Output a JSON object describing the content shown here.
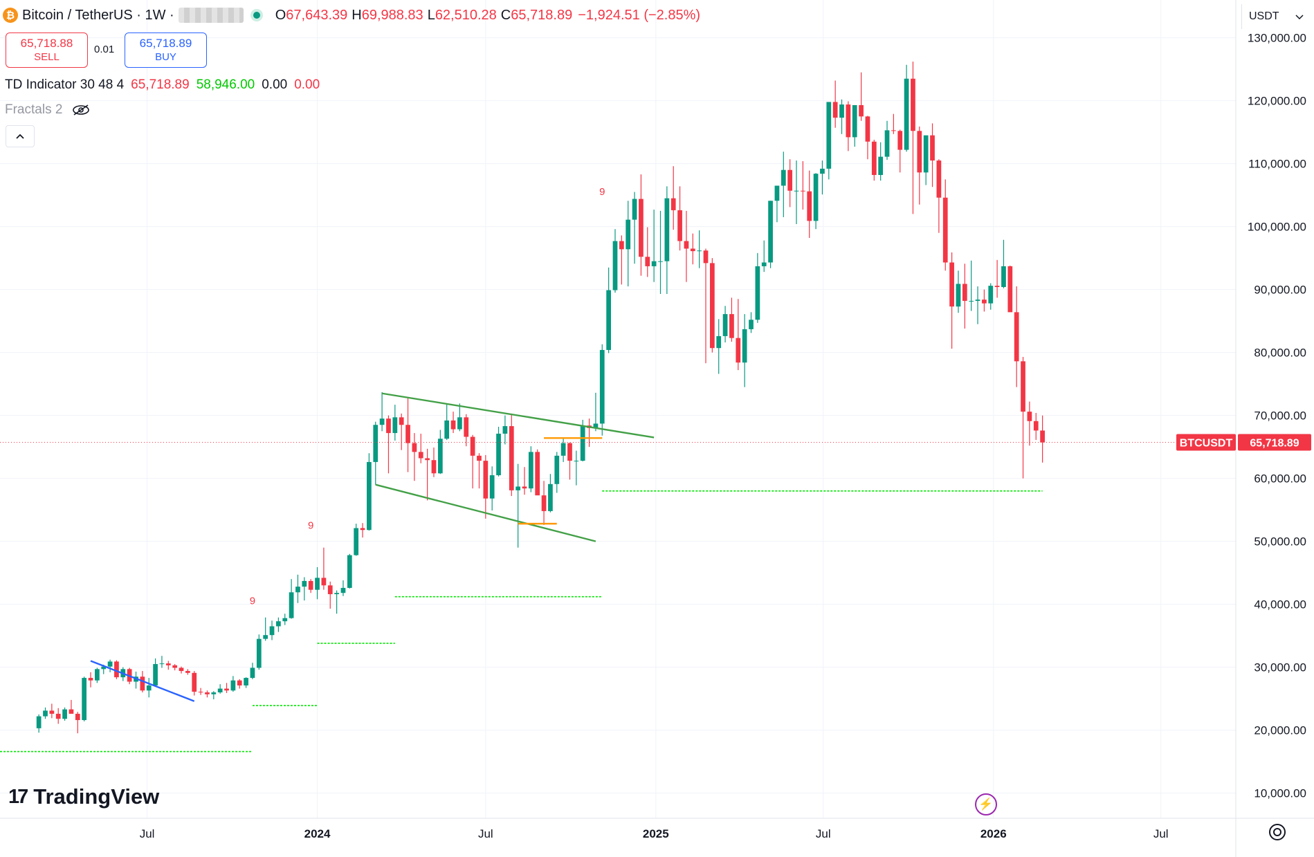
{
  "header": {
    "coin_symbol": "₿",
    "title": "Bitcoin / TetherUS · 1W ·",
    "o_label": "O",
    "o_value": "67,643.39",
    "h_label": "H",
    "h_value": "69,988.83",
    "l_label": "L",
    "l_value": "62,510.28",
    "c_label": "C",
    "c_value": "65,718.89",
    "change": "−1,924.51 (−2.85%)"
  },
  "trade": {
    "sell_price": "65,718.88",
    "sell_label": "SELL",
    "spread": "0.01",
    "buy_price": "65,718.89",
    "buy_label": "BUY"
  },
  "indicators": {
    "td_name": "TD Indicator 30 48 4",
    "td_v1": "65,718.89",
    "td_v2": "58,946.00",
    "td_v3": "0.00",
    "td_v4": "0.00",
    "fractals_name": "Fractals 2"
  },
  "currency": {
    "label": "USDT"
  },
  "price_tag": {
    "symbol": "BTCUSDT",
    "price": "65,718.89",
    "value": 65718.89
  },
  "brand": {
    "logo_text": "TradingView"
  },
  "colors": {
    "up": "#089981",
    "down": "#f23645",
    "trend": "#43a047",
    "blue_line": "#2962ff",
    "orange": "#ff9800",
    "level": "#00e600",
    "grid": "#f0f3fa"
  },
  "chart_data": {
    "type": "candlestick",
    "interval": "1W",
    "y_axis": {
      "ticks": [
        10000,
        20000,
        30000,
        40000,
        50000,
        60000,
        70000,
        80000,
        90000,
        100000,
        110000,
        120000,
        130000
      ],
      "tick_labels": [
        "10,000.00",
        "20,000.00",
        "30,000.00",
        "40,000.00",
        "50,000.00",
        "60,000.00",
        "70,000.00",
        "80,000.00",
        "90,000.00",
        "100,000.00",
        "110,000.00",
        "120,000.00",
        "130,000.00"
      ]
    },
    "x_axis": {
      "tick_labels": [
        "Jul",
        "2024",
        "Jul",
        "2025",
        "Jul",
        "2026",
        "Jul"
      ],
      "tick_dates": [
        "2023-07-01",
        "2024-01-01",
        "2024-07-01",
        "2025-01-01",
        "2025-07-01",
        "2026-01-01",
        "2026-07-01"
      ]
    },
    "x_range": [
      "2023-01-23",
      "2026-09-20"
    ],
    "y_range": [
      6000,
      136000
    ],
    "series_ohlc": [
      [
        "2023-03-06",
        20300,
        22500,
        19600,
        22200
      ],
      [
        "2023-03-13",
        22200,
        23600,
        21800,
        23100
      ],
      [
        "2023-03-20",
        23100,
        24200,
        21900,
        22600
      ],
      [
        "2023-03-27",
        22600,
        23500,
        21000,
        21800
      ],
      [
        "2023-04-03",
        21800,
        23600,
        21500,
        23300
      ],
      [
        "2023-04-10",
        23300,
        24800,
        22700,
        22600
      ],
      [
        "2023-04-17",
        22600,
        22900,
        19500,
        21600
      ],
      [
        "2023-04-24",
        21600,
        28500,
        21400,
        28300
      ],
      [
        "2023-05-01",
        28300,
        29200,
        26800,
        27900
      ],
      [
        "2023-05-08",
        27900,
        29900,
        27500,
        29700
      ],
      [
        "2023-05-15",
        29700,
        30400,
        28900,
        30100
      ],
      [
        "2023-05-22",
        30100,
        31200,
        29200,
        30900
      ],
      [
        "2023-05-29",
        30900,
        31100,
        28100,
        28400
      ],
      [
        "2023-06-05",
        28400,
        30000,
        27800,
        29700
      ],
      [
        "2023-06-12",
        29700,
        29900,
        27300,
        27700
      ],
      [
        "2023-06-19",
        27700,
        29300,
        26600,
        28500
      ],
      [
        "2023-06-26",
        28500,
        29400,
        26000,
        26300
      ],
      [
        "2023-07-03",
        26300,
        28300,
        25200,
        27100
      ],
      [
        "2023-07-10",
        27100,
        31400,
        26900,
        30500
      ],
      [
        "2023-07-17",
        30500,
        31800,
        29900,
        30600
      ],
      [
        "2023-07-24",
        30600,
        31000,
        29600,
        30300
      ],
      [
        "2023-07-31",
        30300,
        30500,
        29500,
        29900
      ],
      [
        "2023-08-07",
        29900,
        30100,
        29000,
        29400
      ],
      [
        "2023-08-14",
        29400,
        29700,
        28800,
        29100
      ],
      [
        "2023-08-21",
        29100,
        29400,
        25500,
        26100
      ],
      [
        "2023-08-28",
        26100,
        26700,
        25600,
        26000
      ],
      [
        "2023-09-04",
        26000,
        26300,
        25200,
        25700
      ],
      [
        "2023-09-11",
        25700,
        26200,
        24900,
        26000
      ],
      [
        "2023-09-18",
        26000,
        27300,
        25800,
        26600
      ],
      [
        "2023-09-25",
        26600,
        27500,
        25900,
        26300
      ],
      [
        "2023-10-02",
        26300,
        28600,
        26100,
        27900
      ],
      [
        "2023-10-09",
        27900,
        28100,
        26600,
        27100
      ],
      [
        "2023-10-16",
        27100,
        28400,
        26700,
        28300
      ],
      [
        "2023-10-23",
        28300,
        30700,
        28100,
        29900
      ],
      [
        "2023-10-30",
        29900,
        35200,
        29600,
        34500
      ],
      [
        "2023-11-06",
        34500,
        37900,
        34200,
        35100
      ],
      [
        "2023-11-13",
        35100,
        37400,
        34300,
        36500
      ],
      [
        "2023-11-20",
        36500,
        37900,
        35600,
        37300
      ],
      [
        "2023-11-27",
        37300,
        38500,
        36700,
        37800
      ],
      [
        "2023-12-04",
        37800,
        44000,
        37700,
        41900
      ],
      [
        "2023-12-11",
        41900,
        44700,
        40200,
        42800
      ],
      [
        "2023-12-18",
        42800,
        44300,
        40600,
        43700
      ],
      [
        "2023-12-25",
        43700,
        44000,
        41800,
        42300
      ],
      [
        "2024-01-01",
        42300,
        45900,
        40800,
        44200
      ],
      [
        "2024-01-08",
        44200,
        49000,
        42300,
        43000
      ],
      [
        "2024-01-15",
        43000,
        43600,
        39300,
        41600
      ],
      [
        "2024-01-22",
        41600,
        42200,
        38500,
        41800
      ],
      [
        "2024-01-29",
        41800,
        43800,
        41300,
        42600
      ],
      [
        "2024-02-05",
        42600,
        48000,
        42500,
        47800
      ],
      [
        "2024-02-12",
        47800,
        52800,
        47700,
        52100
      ],
      [
        "2024-02-19",
        52100,
        52900,
        50600,
        51800
      ],
      [
        "2024-02-26",
        51800,
        64000,
        51700,
        62600
      ],
      [
        "2024-03-04",
        62600,
        69000,
        59000,
        68500
      ],
      [
        "2024-03-11",
        68500,
        73700,
        67500,
        69500
      ],
      [
        "2024-03-18",
        69500,
        70000,
        60800,
        67200
      ],
      [
        "2024-03-25",
        67200,
        71700,
        66000,
        69700
      ],
      [
        "2024-04-01",
        69700,
        70300,
        64500,
        68500
      ],
      [
        "2024-04-08",
        68500,
        72700,
        61000,
        65600
      ],
      [
        "2024-04-15",
        65600,
        67200,
        59600,
        64200
      ],
      [
        "2024-04-22",
        64200,
        67100,
        62400,
        63200
      ],
      [
        "2024-04-29",
        63200,
        64700,
        56500,
        62900
      ],
      [
        "2024-05-06",
        62900,
        64900,
        60200,
        60800
      ],
      [
        "2024-05-13",
        60800,
        67700,
        60700,
        66300
      ],
      [
        "2024-05-20",
        66300,
        71900,
        66100,
        69200
      ],
      [
        "2024-05-27",
        69200,
        70600,
        67200,
        67800
      ],
      [
        "2024-06-03",
        67800,
        71900,
        67500,
        69700
      ],
      [
        "2024-06-10",
        69700,
        70200,
        65100,
        66600
      ],
      [
        "2024-06-17",
        66600,
        66900,
        58400,
        63600
      ],
      [
        "2024-06-24",
        63600,
        64000,
        58400,
        62800
      ],
      [
        "2024-07-01",
        62800,
        63700,
        53600,
        56800
      ],
      [
        "2024-07-08",
        56800,
        61900,
        54900,
        60500
      ],
      [
        "2024-07-15",
        60500,
        68200,
        60300,
        67100
      ],
      [
        "2024-07-22",
        67100,
        70000,
        65400,
        68300
      ],
      [
        "2024-07-29",
        68300,
        70100,
        57200,
        58100
      ],
      [
        "2024-08-05",
        58100,
        62300,
        49000,
        58700
      ],
      [
        "2024-08-12",
        58700,
        61800,
        57400,
        58400
      ],
      [
        "2024-08-19",
        58400,
        65100,
        57800,
        64200
      ],
      [
        "2024-08-26",
        64200,
        64600,
        57500,
        57300
      ],
      [
        "2024-09-02",
        57300,
        59600,
        52600,
        54800
      ],
      [
        "2024-09-09",
        54800,
        60700,
        54600,
        59100
      ],
      [
        "2024-09-16",
        59100,
        64200,
        57700,
        63600
      ],
      [
        "2024-09-23",
        63600,
        66400,
        62600,
        65600
      ],
      [
        "2024-09-30",
        65600,
        65700,
        59800,
        62800
      ],
      [
        "2024-10-07",
        62800,
        64400,
        58900,
        62800
      ],
      [
        "2024-10-14",
        62800,
        69300,
        62700,
        68400
      ],
      [
        "2024-10-21",
        68400,
        69500,
        65000,
        68000
      ],
      [
        "2024-10-28",
        68000,
        73600,
        67500,
        68700
      ],
      [
        "2024-11-04",
        68700,
        81300,
        66800,
        80400
      ],
      [
        "2024-11-11",
        80400,
        93500,
        79900,
        89900
      ],
      [
        "2024-11-18",
        89900,
        99600,
        89500,
        97700
      ],
      [
        "2024-11-25",
        97700,
        98600,
        90800,
        96400
      ],
      [
        "2024-12-02",
        96400,
        104100,
        90500,
        101100
      ],
      [
        "2024-12-09",
        101100,
        105500,
        94100,
        104400
      ],
      [
        "2024-12-16",
        104400,
        108300,
        92200,
        95200
      ],
      [
        "2024-12-23",
        95200,
        99900,
        92000,
        93700
      ],
      [
        "2024-12-30",
        93700,
        102700,
        91200,
        94500
      ],
      [
        "2025-01-06",
        94500,
        102500,
        89300,
        94500
      ],
      [
        "2025-01-13",
        94500,
        106400,
        89300,
        104500
      ],
      [
        "2025-01-20",
        104500,
        109600,
        99500,
        102600
      ],
      [
        "2025-01-27",
        102600,
        106400,
        96200,
        97700
      ],
      [
        "2025-02-03",
        97700,
        102500,
        91200,
        96500
      ],
      [
        "2025-02-10",
        96500,
        98900,
        94000,
        96100
      ],
      [
        "2025-02-17",
        96100,
        99400,
        93400,
        96200
      ],
      [
        "2025-02-24",
        96200,
        96500,
        78300,
        94200
      ],
      [
        "2025-03-03",
        94200,
        95000,
        80000,
        80700
      ],
      [
        "2025-03-10",
        80700,
        85300,
        76600,
        82600
      ],
      [
        "2025-03-17",
        82600,
        87400,
        81600,
        86100
      ],
      [
        "2025-03-24",
        86100,
        88700,
        81700,
        82300
      ],
      [
        "2025-03-31",
        82300,
        88500,
        77200,
        78400
      ],
      [
        "2025-04-07",
        78400,
        86100,
        74500,
        83700
      ],
      [
        "2025-04-14",
        83700,
        86400,
        83100,
        85200
      ],
      [
        "2025-04-21",
        85200,
        95800,
        84700,
        93700
      ],
      [
        "2025-04-28",
        93700,
        97800,
        92800,
        94300
      ],
      [
        "2025-05-05",
        94300,
        104100,
        93400,
        104100
      ],
      [
        "2025-05-12",
        104100,
        105800,
        100700,
        106500
      ],
      [
        "2025-05-19",
        106500,
        111900,
        101500,
        109000
      ],
      [
        "2025-05-26",
        109000,
        110700,
        103100,
        105700
      ],
      [
        "2025-06-02",
        105700,
        110500,
        100400,
        105700
      ],
      [
        "2025-06-09",
        105700,
        110400,
        102700,
        105600
      ],
      [
        "2025-06-16",
        105600,
        108900,
        98200,
        100900
      ],
      [
        "2025-06-23",
        100900,
        108500,
        99600,
        108400
      ],
      [
        "2025-06-30",
        108400,
        110500,
        105100,
        109200
      ],
      [
        "2025-07-07",
        109200,
        119500,
        107500,
        119800
      ],
      [
        "2025-07-14",
        119800,
        123200,
        115700,
        117300
      ],
      [
        "2025-07-21",
        117300,
        120200,
        114700,
        119400
      ],
      [
        "2025-07-28",
        119400,
        119900,
        112000,
        114200
      ],
      [
        "2025-08-04",
        114200,
        119300,
        112700,
        119300
      ],
      [
        "2025-08-11",
        119300,
        124500,
        116800,
        117500
      ],
      [
        "2025-08-18",
        117500,
        117600,
        110700,
        113500
      ],
      [
        "2025-08-25",
        113500,
        113800,
        107300,
        108200
      ],
      [
        "2025-09-01",
        108200,
        113400,
        107300,
        111100
      ],
      [
        "2025-09-08",
        111100,
        116800,
        110600,
        115300
      ],
      [
        "2025-09-15",
        115300,
        117900,
        114700,
        115200
      ],
      [
        "2025-09-22",
        115200,
        115400,
        108600,
        112200
      ],
      [
        "2025-09-29",
        112200,
        125700,
        111900,
        123500
      ],
      [
        "2025-10-06",
        123500,
        126200,
        102000,
        115200
      ],
      [
        "2025-10-13",
        115200,
        115900,
        103500,
        108600
      ],
      [
        "2025-10-20",
        108600,
        114000,
        106600,
        114500
      ],
      [
        "2025-10-27",
        114500,
        116400,
        106300,
        110500
      ],
      [
        "2025-11-03",
        110500,
        110700,
        99000,
        104600
      ],
      [
        "2025-11-10",
        104600,
        107500,
        93000,
        94300
      ],
      [
        "2025-11-17",
        94300,
        95900,
        80600,
        87300
      ],
      [
        "2025-11-24",
        87300,
        93000,
        86300,
        90900
      ],
      [
        "2025-12-01",
        90900,
        94100,
        83800,
        88200
      ],
      [
        "2025-12-08",
        88200,
        94600,
        86600,
        88200
      ],
      [
        "2025-12-15",
        88200,
        90500,
        84500,
        88400
      ],
      [
        "2025-12-22",
        88400,
        90000,
        86500,
        87800
      ],
      [
        "2025-12-29",
        87800,
        91000,
        86800,
        90600
      ],
      [
        "2026-01-05",
        90600,
        94700,
        88700,
        90400
      ],
      [
        "2026-01-12",
        90400,
        97900,
        90200,
        93700
      ],
      [
        "2026-01-19",
        93700,
        93800,
        86600,
        86400
      ],
      [
        "2026-01-26",
        86400,
        90500,
        74500,
        78600
      ],
      [
        "2026-02-02",
        78600,
        79300,
        60000,
        70600
      ],
      [
        "2026-02-09",
        70600,
        72200,
        65200,
        69100
      ],
      [
        "2026-02-16",
        69100,
        70400,
        66100,
        67600
      ],
      [
        "2026-02-23",
        67600,
        69990,
        62510,
        65718.89
      ]
    ],
    "td_marks": [
      {
        "date": "2023-10-23",
        "value": 40000,
        "label": "9"
      },
      {
        "date": "2023-12-25",
        "value": 52000,
        "label": "9"
      },
      {
        "date": "2024-11-04",
        "value": 105000,
        "label": "9"
      }
    ],
    "trendlines": [
      {
        "color": "#2962ff",
        "from": [
          "2023-05-01",
          31000
        ],
        "to": [
          "2023-08-21",
          24600
        ]
      },
      {
        "color": "#43a047",
        "from": [
          "2024-03-11",
          73500
        ],
        "to": [
          "2024-12-30",
          66500
        ]
      },
      {
        "color": "#43a047",
        "from": [
          "2024-03-04",
          59000
        ],
        "to": [
          "2024-10-28",
          50000
        ]
      }
    ],
    "orange_levels": [
      {
        "from": "2024-08-05",
        "to": "2024-09-16",
        "value": 52800
      },
      {
        "from": "2024-09-02",
        "to": "2024-11-04",
        "value": 66400
      }
    ],
    "green_levels": [
      {
        "from": "2023-01-23",
        "to": "2023-10-23",
        "value": 16600
      },
      {
        "from": "2023-10-23",
        "to": "2024-01-01",
        "value": 23900
      },
      {
        "from": "2024-01-01",
        "to": "2024-03-25",
        "value": 33800
      },
      {
        "from": "2024-03-25",
        "to": "2024-11-04",
        "value": 41200
      },
      {
        "from": "2024-11-04",
        "to": "2026-02-23",
        "value": 58000
      }
    ]
  }
}
